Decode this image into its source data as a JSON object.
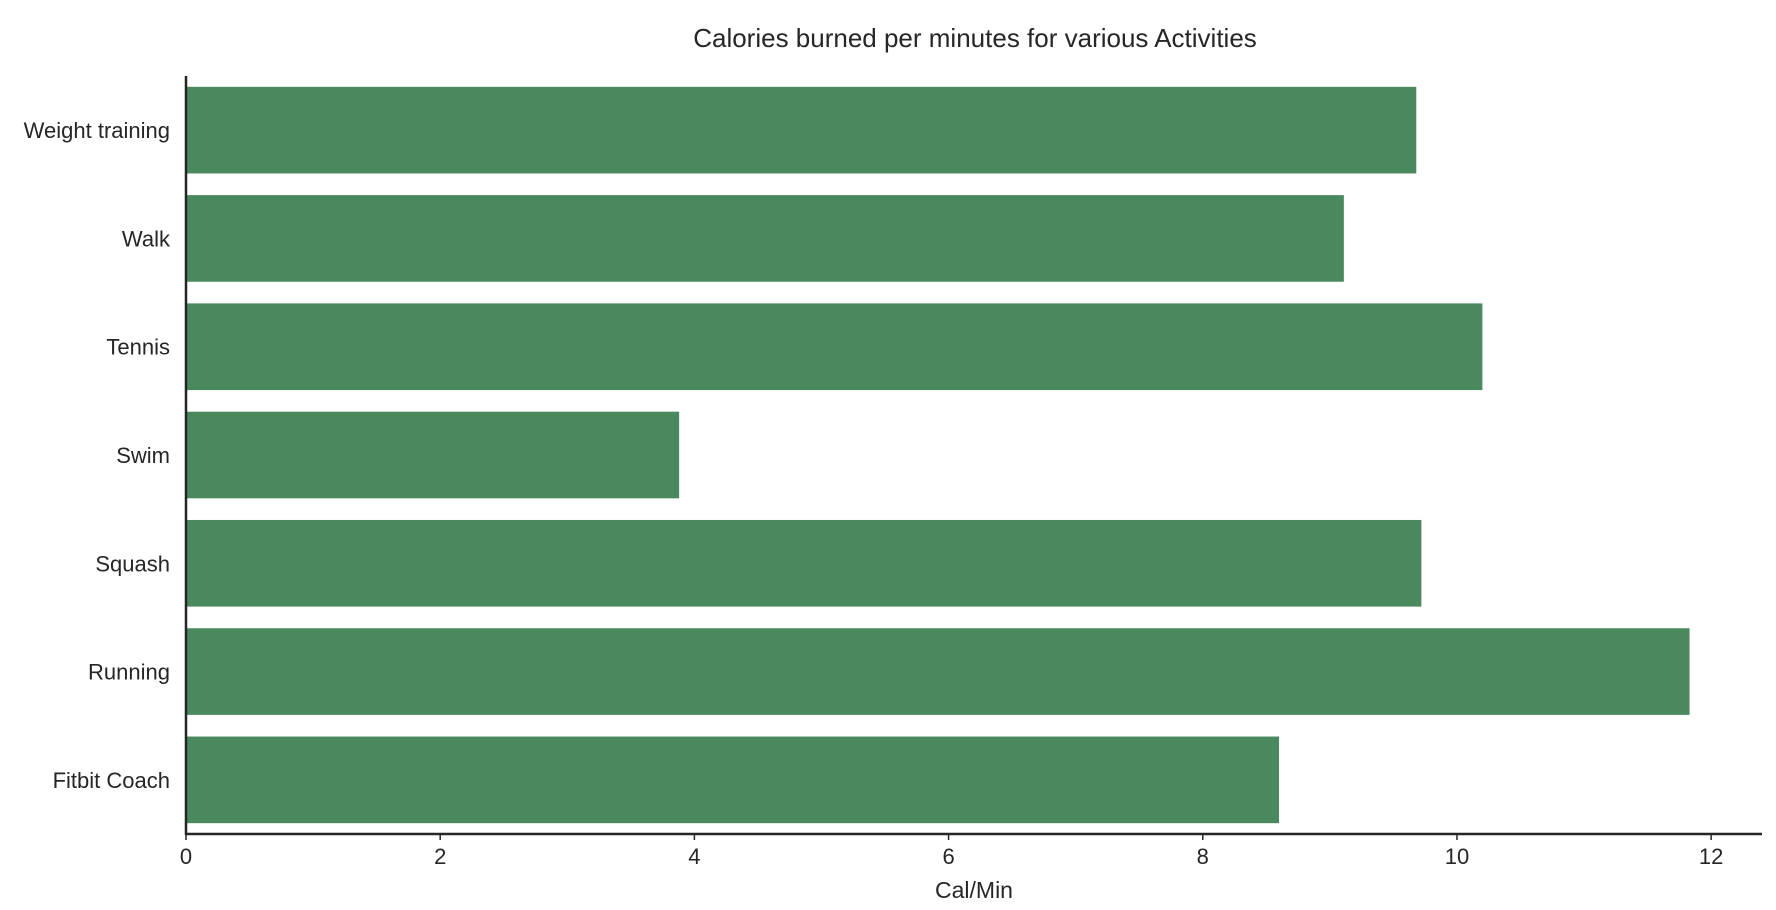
{
  "chart_data": {
    "type": "bar",
    "orientation": "horizontal",
    "title": "Calories burned per minutes for various Activities",
    "xlabel": "Cal/Min",
    "ylabel": "",
    "categories": [
      "Weight training",
      "Walk",
      "Tennis",
      "Swim",
      "Squash",
      "Running",
      "Fitbit Coach"
    ],
    "values": [
      9.68,
      9.11,
      10.2,
      3.88,
      9.72,
      11.83,
      8.6
    ],
    "xlim": [
      0,
      12.4
    ],
    "xticks": [
      0,
      2,
      4,
      6,
      8,
      10,
      12
    ],
    "bar_color": "#4a895e",
    "grid": false,
    "legend": "none"
  }
}
